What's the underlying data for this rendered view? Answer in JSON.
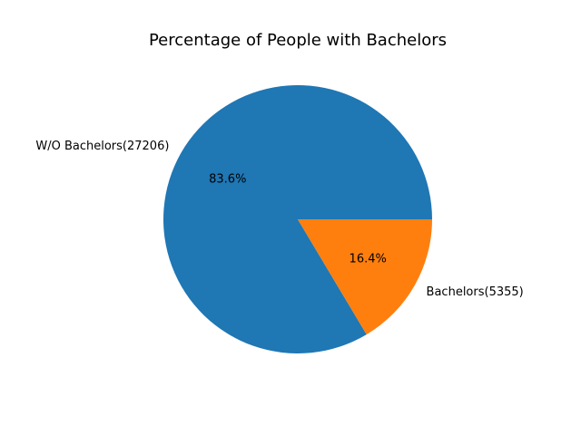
{
  "chart_data": {
    "type": "pie",
    "title": "Percentage of People with Bachelors",
    "slices": [
      {
        "label": "W/O Bachelors(27206)",
        "value": 27206,
        "percent_label": "83.6%",
        "color": "#1f77b4"
      },
      {
        "label": "Bachelors(5355)",
        "value": 5355,
        "percent_label": "16.4%",
        "color": "#ff7f0e"
      }
    ],
    "start_angle": 0,
    "direction": "counterclockwise",
    "legend": "none"
  }
}
